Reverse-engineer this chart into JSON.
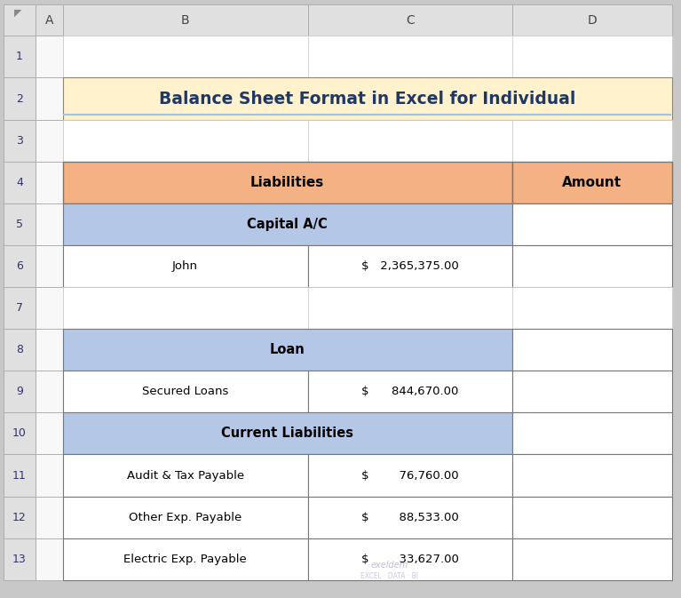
{
  "title": "Balance Sheet Format in Excel for Individual",
  "title_bg": "#FFF2CC",
  "title_color": "#1F3864",
  "title_underline_color": "#9DC3E6",
  "header_bg": "#F4B183",
  "section_bg": "#B4C7E7",
  "white_bg": "#FFFFFF",
  "row_num_bg": "#E0E0E0",
  "col_header_bg": "#E0E0E0",
  "outer_bg": "#C8C8C8",
  "grid_color": "#AAAAAA",
  "table_border_color": "#555555",
  "col_labels": [
    "A",
    "B",
    "C",
    "D"
  ],
  "row_labels": [
    "1",
    "2",
    "3",
    "4",
    "5",
    "6",
    "7",
    "8",
    "9",
    "10",
    "11",
    "12",
    "13"
  ],
  "rows": [
    {
      "type": "empty",
      "col_b": "",
      "col_c": "",
      "col_d": ""
    },
    {
      "type": "title",
      "col_b": "Balance Sheet Format in Excel for Individual",
      "col_c": "",
      "col_d": ""
    },
    {
      "type": "empty",
      "col_b": "",
      "col_c": "",
      "col_d": ""
    },
    {
      "type": "header",
      "col_b": "Liabilities",
      "col_c": "",
      "col_d": "Amount"
    },
    {
      "type": "section",
      "col_b": "Capital A/C",
      "col_c": "",
      "col_d": ""
    },
    {
      "type": "data",
      "col_b": "John",
      "col_c": "$   2,365,375.00",
      "col_d": ""
    },
    {
      "type": "empty",
      "col_b": "",
      "col_c": "",
      "col_d": ""
    },
    {
      "type": "section",
      "col_b": "Loan",
      "col_c": "",
      "col_d": ""
    },
    {
      "type": "data",
      "col_b": "Secured Loans",
      "col_c": "$      844,670.00",
      "col_d": ""
    },
    {
      "type": "section",
      "col_b": "Current Liabilities",
      "col_c": "",
      "col_d": ""
    },
    {
      "type": "data",
      "col_b": "Audit & Tax Payable",
      "col_c": "$        76,760.00",
      "col_d": ""
    },
    {
      "type": "data",
      "col_b": "Other Exp. Payable",
      "col_c": "$        88,533.00",
      "col_d": ""
    },
    {
      "type": "data",
      "col_b": "Electric Exp. Payable",
      "col_c": "$        33,627.00",
      "col_d": ""
    }
  ],
  "figsize": [
    7.67,
    6.73
  ],
  "dpi": 100
}
